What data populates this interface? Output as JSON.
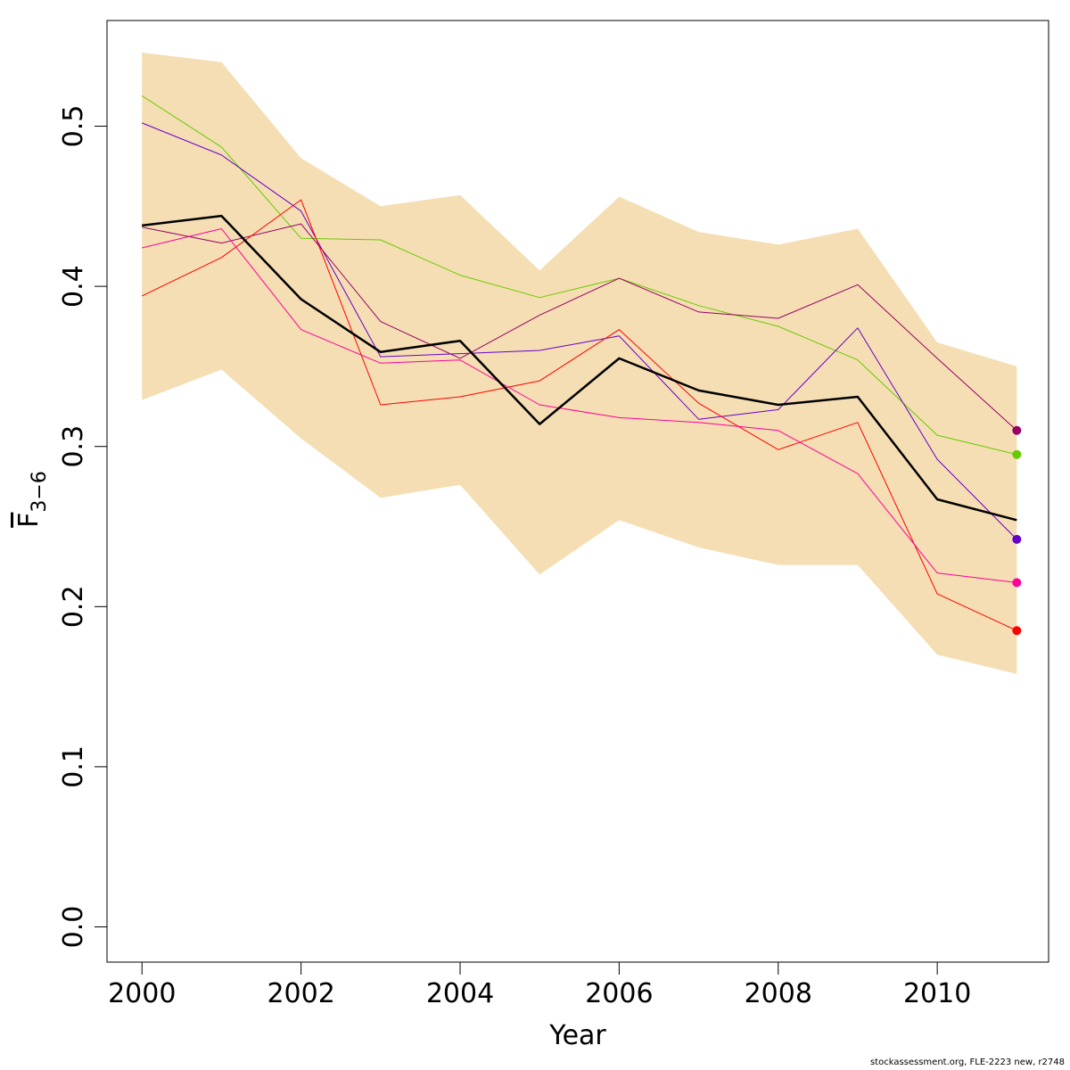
{
  "chart_data": {
    "type": "line",
    "xlabel": "Year",
    "ylabel_main": "F",
    "ylabel_sub": "3−6",
    "xlim": [
      1999.56,
      2011.4
    ],
    "ylim": [
      -0.022,
      0.566
    ],
    "x_ticks": [
      2000,
      2002,
      2004,
      2006,
      2008,
      2010
    ],
    "x_tick_labels": [
      "2000",
      "2002",
      "2004",
      "2006",
      "2008",
      "2010"
    ],
    "y_ticks": [
      0.0,
      0.1,
      0.2,
      0.3,
      0.4,
      0.5
    ],
    "y_tick_labels": [
      "0.0",
      "0.1",
      "0.2",
      "0.3",
      "0.4",
      "0.5"
    ],
    "x": [
      2000,
      2001,
      2002,
      2003,
      2004,
      2005,
      2006,
      2007,
      2008,
      2009,
      2010,
      2011
    ],
    "band": {
      "color": "#F5DEB3",
      "lower": [
        0.329,
        0.348,
        0.305,
        0.268,
        0.276,
        0.22,
        0.254,
        0.237,
        0.226,
        0.226,
        0.17,
        0.158
      ],
      "upper": [
        0.546,
        0.54,
        0.48,
        0.45,
        0.457,
        0.41,
        0.456,
        0.434,
        0.426,
        0.436,
        0.365,
        0.35
      ]
    },
    "series": [
      {
        "color": "#000000",
        "width": 2.5,
        "endpoint": false,
        "values": [
          0.438,
          0.444,
          0.392,
          0.359,
          0.366,
          0.314,
          0.355,
          0.335,
          0.326,
          0.331,
          0.267,
          0.254
        ]
      },
      {
        "color": "#66CC00",
        "width": 1,
        "endpoint": true,
        "values": [
          0.519,
          0.487,
          0.43,
          0.429,
          0.407,
          0.393,
          0.405,
          0.388,
          0.375,
          0.354,
          0.307,
          0.295
        ]
      },
      {
        "color": "#6600CC",
        "width": 1,
        "endpoint": true,
        "values": [
          0.502,
          0.482,
          0.447,
          0.356,
          0.358,
          0.36,
          0.369,
          0.317,
          0.323,
          0.374,
          0.292,
          0.242
        ]
      },
      {
        "color": "#990066",
        "width": 1,
        "endpoint": true,
        "values": [
          0.437,
          0.427,
          0.439,
          0.378,
          0.355,
          0.382,
          0.405,
          0.384,
          0.38,
          0.401,
          0.355,
          0.31
        ]
      },
      {
        "color": "#FF0000",
        "width": 1,
        "endpoint": true,
        "values": [
          0.394,
          0.418,
          0.454,
          0.326,
          0.331,
          0.341,
          0.373,
          0.327,
          0.298,
          0.315,
          0.208,
          0.185
        ]
      },
      {
        "color": "#FF0099",
        "width": 1,
        "endpoint": true,
        "values": [
          0.424,
          0.436,
          0.373,
          0.352,
          0.354,
          0.326,
          0.318,
          0.315,
          0.31,
          0.283,
          0.221,
          0.215
        ]
      }
    ]
  },
  "footer": {
    "caption": "stockassessment.org, FLE-2223 new, r2748"
  }
}
